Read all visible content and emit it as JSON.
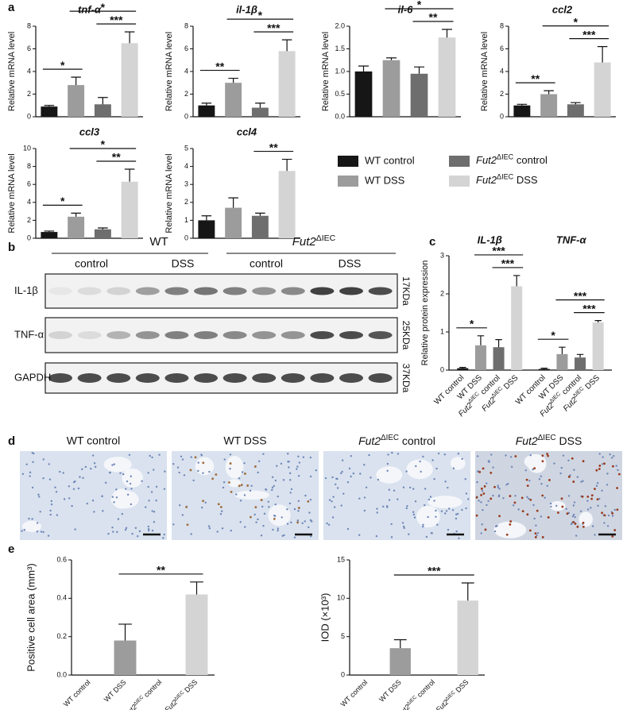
{
  "panel_labels": [
    "a",
    "b",
    "c",
    "d",
    "e"
  ],
  "legend": [
    {
      "name": "WT control",
      "color": "#161616"
    },
    {
      "name": "WT DSS",
      "color": "#9c9c9c"
    },
    {
      "name": "Fut2ΔIEC control",
      "color": "#6e6e6e"
    },
    {
      "name": "Fut2ΔIEC DSS",
      "color": "#d4d4d4"
    }
  ],
  "chart_data": [
    {
      "type": "bar",
      "title": "tnf-α",
      "ylabel": "Relative mRNA level",
      "values": [
        0.9,
        2.8,
        1.1,
        6.5
      ],
      "errors": [
        0.1,
        0.7,
        0.6,
        1.0
      ],
      "ylim": [
        0,
        8
      ],
      "yticks": [
        0,
        2,
        4,
        6,
        8
      ],
      "significance": [
        {
          "groups": [
            "WT control",
            "WT DSS"
          ],
          "label": "*"
        },
        {
          "groups": [
            "Fut2ΔIEC control",
            "Fut2ΔIEC DSS"
          ],
          "label": "***"
        },
        {
          "groups": [
            "WT DSS",
            "Fut2ΔIEC DSS"
          ],
          "label": "*"
        }
      ]
    },
    {
      "type": "bar",
      "title": "il-1β",
      "ylabel": "Relative mRNA level",
      "values": [
        1.0,
        3.0,
        0.8,
        5.8
      ],
      "errors": [
        0.2,
        0.4,
        0.4,
        1.0
      ],
      "ylim": [
        0,
        8
      ],
      "yticks": [
        0,
        2,
        4,
        6,
        8
      ],
      "significance": [
        {
          "groups": [
            "WT control",
            "WT DSS"
          ],
          "label": "**"
        },
        {
          "groups": [
            "Fut2ΔIEC control",
            "Fut2ΔIEC DSS"
          ],
          "label": "***"
        },
        {
          "groups": [
            "WT DSS",
            "Fut2ΔIEC DSS"
          ],
          "label": "*"
        }
      ]
    },
    {
      "type": "bar",
      "title": "il-6",
      "ylabel": "Relative mRNA level",
      "values": [
        1.0,
        1.25,
        0.95,
        1.75
      ],
      "errors": [
        0.12,
        0.05,
        0.15,
        0.18
      ],
      "ylim": [
        0,
        2
      ],
      "yticks": [
        {
          "value": 0,
          "label": "0.0"
        },
        0.5,
        {
          "value": 1,
          "label": "1.0"
        },
        1.5,
        {
          "value": 2,
          "label": "2.0"
        }
      ],
      "significance": [
        {
          "groups": [
            "Fut2ΔIEC control",
            "Fut2ΔIEC DSS"
          ],
          "label": "**"
        },
        {
          "groups": [
            "WT DSS",
            "Fut2ΔIEC DSS"
          ],
          "label": "*"
        }
      ]
    },
    {
      "type": "bar",
      "title": "ccl2",
      "ylabel": "Relative mRNA level",
      "values": [
        1.0,
        2.0,
        1.1,
        4.8
      ],
      "errors": [
        0.1,
        0.3,
        0.15,
        1.4
      ],
      "ylim": [
        0,
        8
      ],
      "yticks": [
        0,
        2,
        4,
        6,
        8
      ],
      "significance": [
        {
          "groups": [
            "WT control",
            "WT DSS"
          ],
          "label": "**"
        },
        {
          "groups": [
            "Fut2ΔIEC control",
            "Fut2ΔIEC DSS"
          ],
          "label": "***"
        },
        {
          "groups": [
            "WT DSS",
            "Fut2ΔIEC DSS"
          ],
          "label": "*"
        }
      ]
    },
    {
      "type": "bar",
      "title": "ccl3",
      "ylabel": "Relative mRNA level",
      "values": [
        0.7,
        2.4,
        1.0,
        6.3
      ],
      "errors": [
        0.1,
        0.4,
        0.15,
        1.4
      ],
      "ylim": [
        0,
        10
      ],
      "yticks": [
        0,
        2,
        4,
        6,
        8,
        10
      ],
      "significance": [
        {
          "groups": [
            "WT control",
            "WT DSS"
          ],
          "label": "*"
        },
        {
          "groups": [
            "Fut2ΔIEC control",
            "Fut2ΔIEC DSS"
          ],
          "label": "**"
        },
        {
          "groups": [
            "WT DSS",
            "Fut2ΔIEC DSS"
          ],
          "label": "*"
        }
      ]
    },
    {
      "type": "bar",
      "title": "ccl4",
      "ylabel": "Relative mRNA level",
      "values": [
        1.0,
        1.7,
        1.25,
        3.75
      ],
      "errors": [
        0.25,
        0.55,
        0.15,
        0.65
      ],
      "ylim": [
        0,
        5
      ],
      "yticks": [
        0,
        1,
        2,
        3,
        4,
        5
      ],
      "significance": [
        {
          "groups": [
            "Fut2ΔIEC control",
            "Fut2ΔIEC DSS"
          ],
          "label": "**"
        }
      ]
    },
    {
      "type": "grouped_bar",
      "ylabel": "Relative protein expression",
      "categories": [
        "WT control",
        "WT DSS",
        "Fut2ΔIEC control",
        "Fut2ΔIEC DSS"
      ],
      "ylim": [
        0,
        3
      ],
      "yticks": [
        0,
        1,
        2,
        3
      ],
      "series": [
        {
          "name": "IL-1β",
          "values": [
            0.05,
            0.65,
            0.6,
            2.2
          ],
          "errors": [
            0.02,
            0.25,
            0.2,
            0.28
          ],
          "significance": [
            {
              "groups": [
                "WT control",
                "WT DSS"
              ],
              "label": "*"
            },
            {
              "groups": [
                "Fut2ΔIEC control",
                "Fut2ΔIEC DSS"
              ],
              "label": "***"
            },
            {
              "groups": [
                "WT DSS",
                "Fut2ΔIEC DSS"
              ],
              "label": "***"
            }
          ]
        },
        {
          "name": "TNF-α",
          "values": [
            0.03,
            0.42,
            0.33,
            1.25
          ],
          "errors": [
            0.02,
            0.18,
            0.08,
            0.05
          ],
          "significance": [
            {
              "groups": [
                "WT control",
                "WT DSS"
              ],
              "label": "*"
            },
            {
              "groups": [
                "Fut2ΔIEC control",
                "Fut2ΔIEC DSS"
              ],
              "label": "***"
            },
            {
              "groups": [
                "WT DSS",
                "Fut2ΔIEC DSS"
              ],
              "label": "***"
            }
          ]
        }
      ]
    },
    {
      "type": "bar",
      "ylabel": "Positive cell area (mm³)",
      "categories": [
        "WT control",
        "WT DSS",
        "Fut2ΔIEC control",
        "Fut2ΔIEC DSS"
      ],
      "values": [
        null,
        0.18,
        null,
        0.42
      ],
      "errors": [
        null,
        0.085,
        null,
        0.065
      ],
      "ylim": [
        0,
        0.6
      ],
      "yticks": [
        {
          "value": 0,
          "label": "0.0"
        },
        0.2,
        0.4,
        0.6
      ],
      "significance": [
        {
          "groups": [
            "WT DSS",
            "Fut2ΔIEC DSS"
          ],
          "label": "**"
        }
      ]
    },
    {
      "type": "bar",
      "ylabel": "IOD (×10³)",
      "categories": [
        "WT control",
        "WT DSS",
        "Fut2ΔIEC control",
        "Fut2ΔIEC DSS"
      ],
      "values": [
        null,
        3.5,
        null,
        9.7
      ],
      "errors": [
        null,
        1.1,
        null,
        2.3
      ],
      "ylim": [
        0,
        15
      ],
      "yticks": [
        0,
        5,
        10,
        15
      ],
      "significance": [
        {
          "groups": [
            "WT DSS",
            "Fut2ΔIEC DSS"
          ],
          "label": "***"
        }
      ]
    }
  ],
  "blot": {
    "genotypes": [
      "WT",
      "Fut2ΔIEC"
    ],
    "conditions": [
      "control",
      "DSS",
      "control",
      "DSS"
    ],
    "proteins": [
      "IL-1β",
      "TNF-α",
      "GAPDH"
    ],
    "sizes": [
      "17KDa",
      "25KDa",
      "37KDa"
    ]
  },
  "histology": {
    "titles": [
      "WT control",
      "WT DSS",
      "Fut2ΔIEC control",
      "Fut2ΔIEC DSS"
    ]
  }
}
